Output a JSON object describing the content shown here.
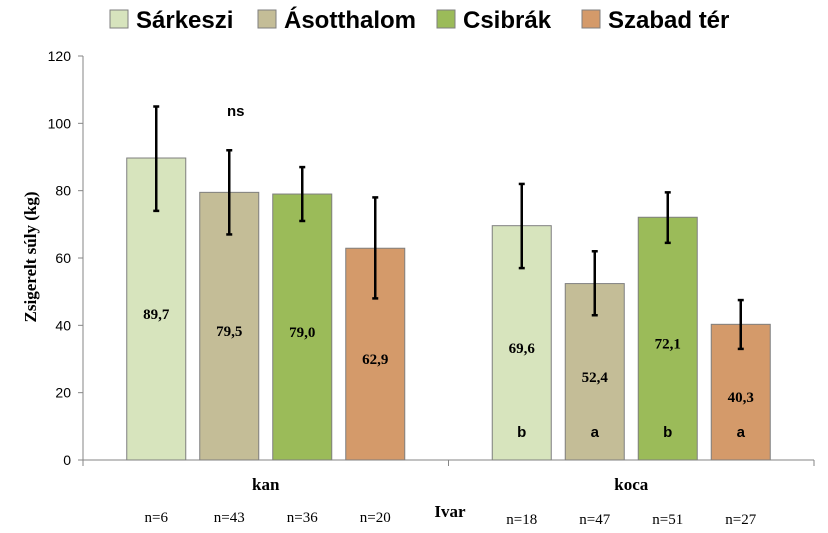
{
  "chart_data": {
    "type": "bar",
    "xlabel": "Ivar",
    "ylabel": "Zsigerelt súly (kg)",
    "ylim": [
      0,
      120
    ],
    "yticks": [
      0,
      20,
      40,
      60,
      80,
      100,
      120
    ],
    "grid": false,
    "legend_position": "top",
    "categories": [
      "kan",
      "koca"
    ],
    "series": [
      {
        "name": "Sárkeszi",
        "color": "#d7e4bd",
        "values": [
          89.7,
          69.6
        ],
        "value_labels": [
          "89,7",
          "69,6"
        ],
        "error_low": [
          74,
          57
        ],
        "error_high": [
          105,
          82
        ],
        "n_labels": [
          "n=6",
          "n=18"
        ],
        "sig_labels": [
          "",
          "b"
        ]
      },
      {
        "name": "Ásotthalom",
        "color": "#c4bd97",
        "values": [
          79.5,
          52.4
        ],
        "value_labels": [
          "79,5",
          "52,4"
        ],
        "error_low": [
          67,
          43
        ],
        "error_high": [
          92,
          62
        ],
        "n_labels": [
          "n=43",
          "n=47"
        ],
        "sig_labels": [
          "",
          "a"
        ]
      },
      {
        "name": "Csibrák",
        "color": "#9bbb59",
        "values": [
          79.0,
          72.1
        ],
        "value_labels": [
          "79,0",
          "72,1"
        ],
        "error_low": [
          71,
          64.5
        ],
        "error_high": [
          87,
          79.5
        ],
        "n_labels": [
          "n=36",
          "n=51"
        ],
        "sig_labels": [
          "",
          "b"
        ]
      },
      {
        "name": "Szabad tér",
        "color": "#d49a6a",
        "values": [
          62.9,
          40.3
        ],
        "value_labels": [
          "62,9",
          "40,3"
        ],
        "error_low": [
          48,
          33
        ],
        "error_high": [
          78,
          47.5
        ],
        "n_labels": [
          "n=20",
          "n=27"
        ],
        "sig_labels": [
          "",
          "a"
        ]
      }
    ],
    "annotations": [
      {
        "text": "ns",
        "category": "kan"
      }
    ]
  }
}
